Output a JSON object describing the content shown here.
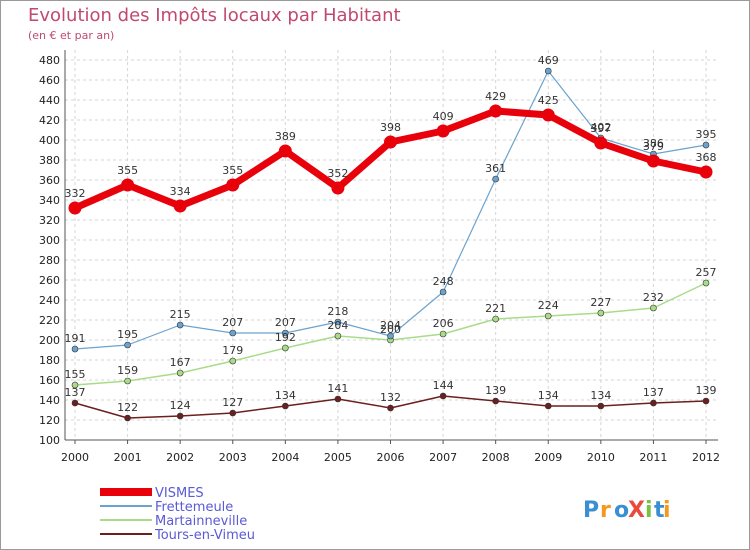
{
  "header": {
    "title": "Evolution des Impôts locaux par Habitant",
    "subtitle": "(en € et par an)"
  },
  "logo": {
    "text": "ProXiti"
  },
  "chart_data": {
    "type": "line",
    "title": "Evolution des Impôts locaux par Habitant",
    "subtitle": "(en € et par an)",
    "xlabel": "",
    "ylabel": "",
    "ylim": [
      100,
      480
    ],
    "ytick_step": 20,
    "grid": true,
    "legend_position": "bottom-left",
    "x": [
      "2000",
      "2001",
      "2002",
      "2003",
      "2004",
      "2005",
      "2006",
      "2007",
      "2008",
      "2009",
      "2010",
      "2011",
      "2012"
    ],
    "series": [
      {
        "name": "VISMES",
        "color": "#e8000b",
        "values": [
          332,
          355,
          334,
          355,
          389,
          352,
          398,
          409,
          429,
          425,
          397,
          379,
          368
        ]
      },
      {
        "name": "Frettemeule",
        "color": "#6aa3d0",
        "values": [
          191,
          195,
          215,
          207,
          207,
          218,
          204,
          248,
          361,
          469,
          402,
          386,
          395
        ]
      },
      {
        "name": "Martainneville",
        "color": "#a8dc88",
        "values": [
          155,
          159,
          167,
          179,
          192,
          204,
          200,
          206,
          221,
          224,
          227,
          232,
          257
        ]
      },
      {
        "name": "Tours-en-Vimeu",
        "color": "#6b1f1f",
        "values": [
          137,
          122,
          124,
          127,
          134,
          141,
          132,
          144,
          139,
          134,
          134,
          137,
          139
        ]
      }
    ]
  }
}
